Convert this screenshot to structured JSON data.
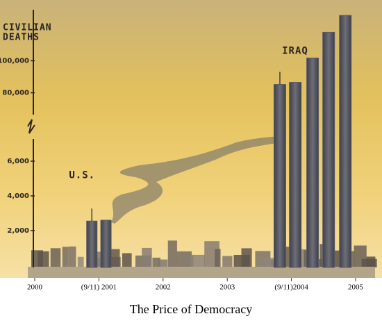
{
  "chart_data": {
    "type": "bar",
    "title": "The Price of Democracy",
    "y_label": [
      "CIVILIAN",
      "DEATHS"
    ],
    "xlim": [
      2000,
      2005
    ],
    "xticks": [
      2000,
      {
        "value": 2001,
        "label": "(9/11) 2001"
      },
      2002,
      2003,
      {
        "value": 2004,
        "label": "(9/11)2004"
      },
      2005
    ],
    "ylim": [
      0,
      7000
    ],
    "yticks": [
      {
        "value": 2000,
        "label": "2,000"
      },
      {
        "value": 4000,
        "label": "4,000"
      },
      {
        "value": 6000,
        "label": "6,000"
      }
    ],
    "ylim_upper": [
      62000,
      131000
    ],
    "yticks_upper": [
      {
        "value": 80000,
        "label": "80,000"
      },
      {
        "value": 100000,
        "label": "100,000"
      }
    ],
    "series": [
      {
        "name": "U.S.",
        "color": "#5b5c66",
        "x": [
          2000.89,
          2001.11
        ],
        "values": [
          2550,
          2600
        ]
      },
      {
        "name": "IRAQ",
        "color": "#5b5c66",
        "axis": "upper",
        "x": [
          2003.82,
          2004.06,
          2004.33,
          2004.58,
          2004.84
        ],
        "values": [
          85200,
          86500,
          101700,
          117800,
          128300
        ]
      }
    ]
  }
}
